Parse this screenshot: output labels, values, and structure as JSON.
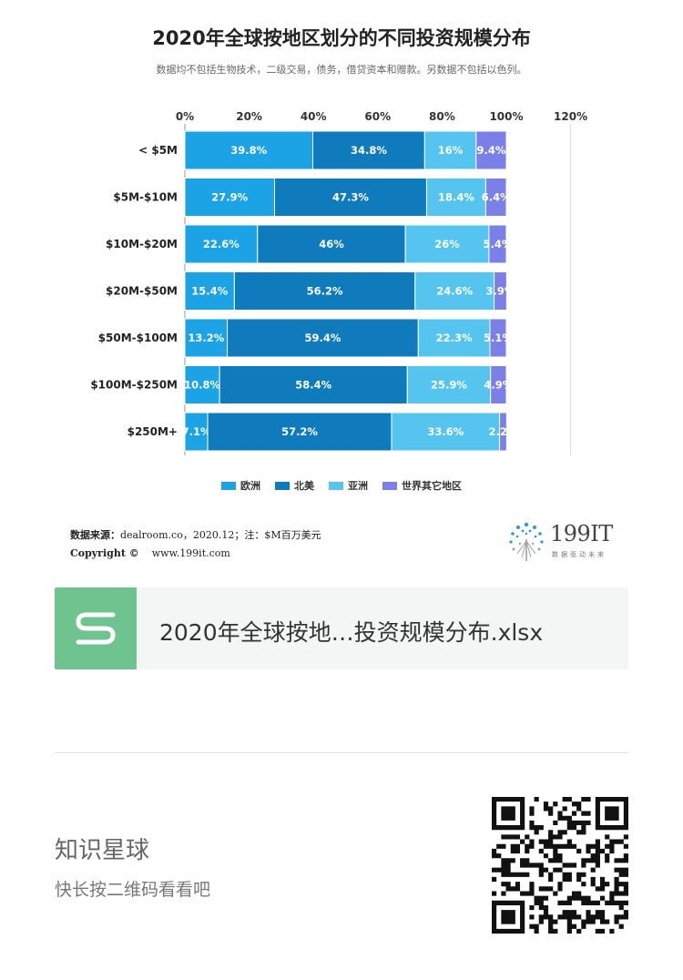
{
  "title": "2020年全球按地区划分的不同投资规模分布",
  "subtitle": "数据均不包括生物技术，二级交易，债务，借贷资本和赠款。另数据不包括以色列。",
  "chart_data": {
    "type": "bar",
    "orientation": "horizontal",
    "stacked": true,
    "xlim": [
      0,
      120
    ],
    "x_ticks": [
      "0%",
      "20%",
      "40%",
      "60%",
      "80%",
      "100%",
      "120%"
    ],
    "x_tick_values": [
      0,
      20,
      40,
      60,
      80,
      100,
      120
    ],
    "categories": [
      "< $5M",
      "$5M-$10M",
      "$10M-$20M",
      "$20M-$50M",
      "$50M-$100M",
      "$100M-$250M",
      "$250M+"
    ],
    "series": [
      {
        "name": "欧洲",
        "color": "#1ba3e6",
        "values": [
          39.8,
          27.9,
          22.6,
          15.4,
          13.2,
          10.8,
          7.1
        ],
        "labels": [
          "39.8%",
          "27.9%",
          "22.6%",
          "15.4%",
          "13.2%",
          "10.8%",
          "7.1%"
        ]
      },
      {
        "name": "北美",
        "color": "#0f7bbd",
        "values": [
          34.8,
          47.3,
          46,
          56.2,
          59.4,
          58.4,
          57.2
        ],
        "labels": [
          "34.8%",
          "47.3%",
          "46%",
          "56.2%",
          "59.4%",
          "58.4%",
          "57.2%"
        ]
      },
      {
        "name": "亚洲",
        "color": "#55c5ef",
        "values": [
          16,
          18.4,
          26,
          24.6,
          22.3,
          25.9,
          33.6
        ],
        "labels": [
          "16%",
          "18.4%",
          "26%",
          "24.6%",
          "22.3%",
          "25.9%",
          "33.6%"
        ]
      },
      {
        "name": "世界其它地区",
        "color": "#7b7fe8",
        "values": [
          9.4,
          6.4,
          5.4,
          3.9,
          5.1,
          4.9,
          2.2
        ],
        "labels": [
          "9.4%",
          "6.4%",
          "5.4%",
          "3.9%",
          "5.1%",
          "4.9%",
          "2.2%"
        ]
      }
    ],
    "legend_position": "bottom",
    "grid": false
  },
  "source": {
    "label": "数据来源：",
    "text": "dealroom.co，2020.12；注：$M百万美元"
  },
  "copyright": {
    "label": "Copyright ©",
    "url": "www.199it.com"
  },
  "brand": {
    "name": "199IT",
    "tagline": "数据驱动未来"
  },
  "file": {
    "name": "2020年全球按地…投资规模分布.xlsx",
    "icon": "spreadsheet-s-icon"
  },
  "footer": {
    "title": "知识星球",
    "subtitle": "快长按二维码看看吧",
    "qr_icon": "qr-code-icon"
  },
  "colors": {
    "europe": "#1ba3e6",
    "north_america": "#0f7bbd",
    "asia": "#55c5ef",
    "rest": "#7b7fe8",
    "file_icon": "#6ec38e"
  }
}
